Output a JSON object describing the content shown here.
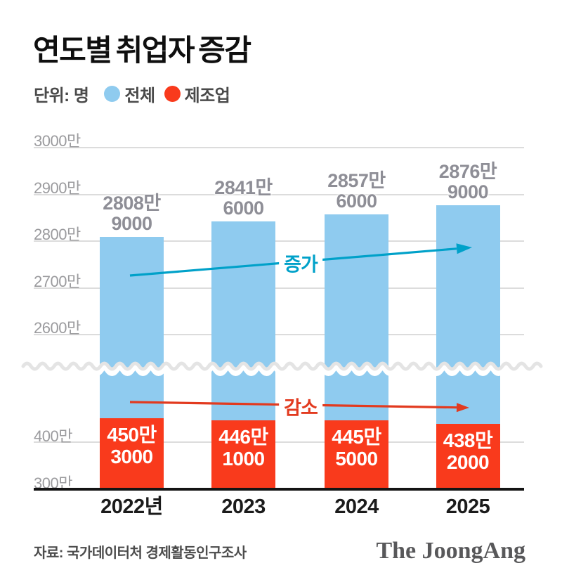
{
  "title": "연도별 취업자 증감",
  "legend": {
    "unit_label": "단위: 명",
    "items": [
      {
        "label": "전체",
        "color": "#8FCBEF"
      },
      {
        "label": "제조업",
        "color": "#F93A1C"
      }
    ]
  },
  "annotations": {
    "increase_label": "증가",
    "increase_color": "#00A1C9",
    "decrease_label": "감소",
    "decrease_color": "#E23A1F"
  },
  "source": "자료: 국가데이터처 경제활동인구조사",
  "logo": "The JoongAng",
  "chart_data": {
    "type": "bar",
    "title": "연도별 취업자 증감",
    "unit": "명",
    "categories": [
      "2022년",
      "2023",
      "2024",
      "2025"
    ],
    "series": [
      {
        "name": "전체",
        "color": "#8FCBEF",
        "values": [
          28089000,
          28416000,
          28576000,
          28769000
        ],
        "value_labels": [
          [
            "2808만",
            "9000"
          ],
          [
            "2841만",
            "6000"
          ],
          [
            "2857만",
            "6000"
          ],
          [
            "2876만",
            "9000"
          ]
        ]
      },
      {
        "name": "제조업",
        "color": "#F93A1C",
        "values": [
          4503000,
          4461000,
          4455000,
          4382000
        ],
        "value_labels": [
          [
            "450만",
            "3000"
          ],
          [
            "446만",
            "1000"
          ],
          [
            "445만",
            "5000"
          ],
          [
            "438만",
            "2000"
          ]
        ]
      }
    ],
    "y_axis": {
      "upper_tick_labels": [
        "3000만",
        "2900만",
        "2800만",
        "2700만",
        "2600만"
      ],
      "upper_tick_values": [
        30000000,
        29000000,
        28000000,
        27000000,
        26000000
      ],
      "lower_tick_labels": [
        "400만",
        "300만"
      ],
      "lower_tick_values": [
        4000000,
        3000000
      ],
      "axis_break": true,
      "grid": true
    },
    "layout_hint": {
      "bar_order": "stacked-visual, total behind manufacturing",
      "legend_position": "top-left",
      "annotation_arrows": [
        {
          "label": "증가",
          "series": "전체",
          "direction": "up-right"
        },
        {
          "label": "감소",
          "series": "제조업",
          "direction": "down-right"
        }
      ]
    }
  }
}
